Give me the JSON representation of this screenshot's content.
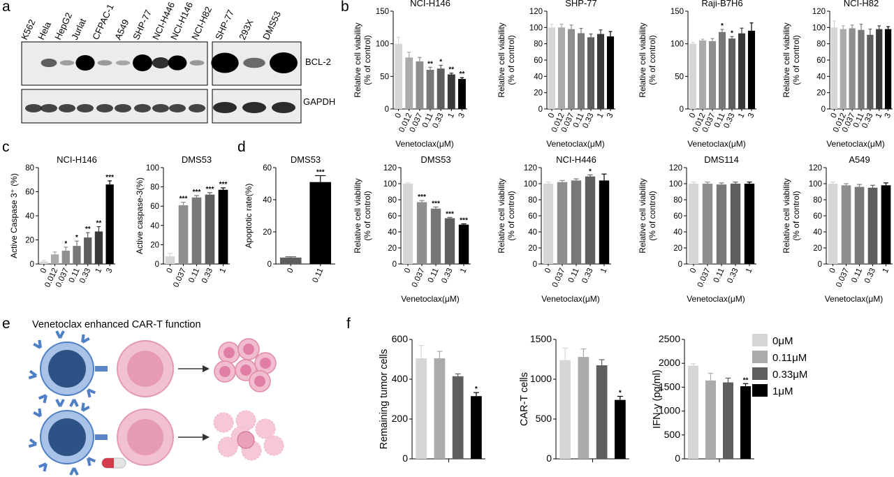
{
  "panel_labels": [
    "a",
    "b",
    "c",
    "d",
    "e",
    "f"
  ],
  "colors": {
    "c0": "#d6d6d6",
    "c1": "#ababab",
    "c2": "#8f8f8f",
    "c3": "#787878",
    "c4": "#5e5e5e",
    "c5": "#3a3a3a",
    "c6": "#000000",
    "cell_blue": "#4f7fc4",
    "cell_blue_dark": "#2c5286",
    "tumor_pink": "#e79ab5",
    "tumor_light": "#f6c8d6"
  },
  "panel_a": {
    "left_lanes": [
      "K562",
      "Hela",
      "HepG2",
      "Jurlat",
      "CFPAC-1",
      "A549",
      "SHP-77",
      "NCI-H446",
      "NCI-H146",
      "NCI-H82"
    ],
    "right_lanes": [
      "SHP-77",
      "293X",
      "DMS53"
    ],
    "proteins": [
      "BCL-2",
      "GAPDH"
    ]
  },
  "panel_e": {
    "title": "Venetoclax enhanced CAR-T function"
  },
  "legend_f": [
    "0μM",
    "0.11μM",
    "0.33μM",
    "1μM"
  ],
  "chart_data": [
    {
      "id": "b1",
      "type": "bar",
      "title": "NCI-H146",
      "xlabel": "Venetoclax(μM)",
      "ylabel": [
        "Relative cell viability",
        "(% of control)"
      ],
      "ylim": [
        0,
        150
      ],
      "yticks": [
        0,
        50,
        100,
        150
      ],
      "categories": [
        "0",
        "0.012",
        "0.037",
        "0.11",
        "0.33",
        "1",
        "3"
      ],
      "values": [
        100,
        79,
        73,
        60,
        62,
        53,
        46
      ],
      "errors": [
        10,
        8,
        6,
        4,
        5,
        2,
        2
      ],
      "sig": [
        "",
        "",
        "",
        "**",
        "*",
        "**",
        "**"
      ]
    },
    {
      "id": "b2",
      "type": "bar",
      "title": "SHP-77",
      "xlabel": "Venetoclax(μM)",
      "ylabel": [
        "Relative cell viability",
        "(% of control)"
      ],
      "ylim": [
        0,
        120
      ],
      "yticks": [
        0,
        20,
        40,
        60,
        80,
        100,
        120
      ],
      "categories": [
        "0",
        "0.012",
        "0.037",
        "0.11",
        "0.33",
        "1",
        "3"
      ],
      "values": [
        100,
        100,
        98,
        93,
        88,
        92,
        89
      ],
      "errors": [
        4,
        4,
        5,
        6,
        4,
        5,
        6
      ],
      "sig": [
        "",
        "",
        "",
        "",
        "",
        "",
        ""
      ]
    },
    {
      "id": "b3",
      "type": "bar",
      "title": "Raji-B7H6",
      "xlabel": "Venetoclax(μM)",
      "ylabel": [
        "Relative cell viability",
        "(% of control)"
      ],
      "ylim": [
        0,
        150
      ],
      "yticks": [
        0,
        50,
        100,
        150
      ],
      "categories": [
        "0",
        "0.012",
        "0.037",
        "0.11",
        "0.33",
        "1",
        "3"
      ],
      "values": [
        100,
        105,
        104,
        118,
        108,
        116,
        120
      ],
      "errors": [
        2,
        2,
        4,
        4,
        3,
        8,
        12
      ],
      "sig": [
        "",
        "",
        "",
        "*",
        "*",
        "",
        ""
      ]
    },
    {
      "id": "b4",
      "type": "bar",
      "title": "NCI-H82",
      "xlabel": "Venetoclax(μM)",
      "ylabel": [
        "Relative cell viability",
        "(% of control)"
      ],
      "ylim": [
        0,
        120
      ],
      "yticks": [
        0,
        20,
        40,
        60,
        80,
        100,
        120
      ],
      "categories": [
        "0",
        "0.012",
        "0.037",
        "0.11",
        "0.33",
        "1",
        "3"
      ],
      "values": [
        100,
        98,
        99,
        97,
        91,
        98,
        98
      ],
      "errors": [
        8,
        4,
        4,
        7,
        7,
        4,
        3
      ],
      "sig": [
        "",
        "",
        "",
        "",
        "",
        "",
        ""
      ]
    },
    {
      "id": "b5",
      "type": "bar",
      "title": "DMS53",
      "xlabel": "Venetoclax(μM)",
      "ylabel": [
        "Relative cell viability",
        "(% of control)"
      ],
      "ylim": [
        0,
        120
      ],
      "yticks": [
        0,
        20,
        40,
        60,
        80,
        100,
        120
      ],
      "categories": [
        "0",
        "0.037",
        "0.11",
        "0.33",
        "1"
      ],
      "values": [
        100,
        77,
        69,
        57,
        49
      ],
      "errors": [
        1,
        2,
        2,
        1,
        1
      ],
      "sig": [
        "",
        "***",
        "***",
        "***",
        "***"
      ]
    },
    {
      "id": "b6",
      "type": "bar",
      "title": "NCI-H446",
      "xlabel": "Venetoclax(μM)",
      "ylabel": [
        "Relative cell viability",
        "(% of control)"
      ],
      "ylim": [
        0,
        120
      ],
      "yticks": [
        0,
        20,
        40,
        60,
        80,
        100,
        120
      ],
      "categories": [
        "0",
        "0.037",
        "0.11",
        "0.33",
        "1"
      ],
      "values": [
        100,
        102,
        104,
        109,
        104
      ],
      "errors": [
        2,
        2,
        2,
        2,
        8
      ],
      "sig": [
        "",
        "",
        "",
        "*",
        ""
      ]
    },
    {
      "id": "b7",
      "type": "bar",
      "title": "DMS114",
      "xlabel": "Venetoclax(μM)",
      "ylabel": [
        "Relative cell viability",
        "(% of control)"
      ],
      "ylim": [
        0,
        120
      ],
      "yticks": [
        0,
        20,
        40,
        60,
        80,
        100,
        120
      ],
      "categories": [
        "0",
        "0.037",
        "0.11",
        "0.33",
        "1"
      ],
      "values": [
        100,
        100,
        99,
        100,
        100
      ],
      "errors": [
        2,
        2,
        2,
        2,
        2
      ],
      "sig": [
        "",
        "",
        "",
        "",
        ""
      ]
    },
    {
      "id": "b8",
      "type": "bar",
      "title": "A549",
      "xlabel": "Venetoclax(μM)",
      "ylabel": [
        "Relative cell viability",
        "(% of control)"
      ],
      "ylim": [
        0,
        120
      ],
      "yticks": [
        0,
        20,
        40,
        60,
        80,
        100,
        120
      ],
      "categories": [
        "0",
        "0.037",
        "0.11",
        "0.33",
        "1"
      ],
      "values": [
        100,
        98,
        96,
        95,
        98
      ],
      "errors": [
        2,
        2,
        3,
        3,
        3
      ],
      "sig": [
        "",
        "",
        "",
        "",
        ""
      ]
    },
    {
      "id": "c1",
      "type": "bar",
      "title": "NCI-H146",
      "xlabel": "",
      "ylabel": [
        "Active Caspase 3⁺ (%)"
      ],
      "ylim": [
        0,
        80
      ],
      "yticks": [
        0,
        20,
        40,
        60,
        80
      ],
      "categories": [
        "0",
        "0.012",
        "0.037",
        "0.11",
        "0.33",
        "1",
        "3"
      ],
      "values": [
        2,
        8,
        11,
        15,
        22,
        27,
        66
      ],
      "errors": [
        1,
        2,
        3,
        4,
        4,
        4,
        3
      ],
      "sig": [
        "",
        "",
        "*",
        "*",
        "**",
        "**",
        "***"
      ]
    },
    {
      "id": "c2",
      "type": "bar",
      "title": "DMS53",
      "xlabel": "",
      "ylabel": [
        "Active caspase-3(%)"
      ],
      "ylim": [
        0,
        100
      ],
      "yticks": [
        0,
        20,
        40,
        60,
        80,
        100
      ],
      "categories": [
        "0",
        "0.037",
        "0.11",
        "0.33",
        "1"
      ],
      "values": [
        8,
        61,
        69,
        72,
        77
      ],
      "errors": [
        3,
        3,
        2,
        2,
        2
      ],
      "sig": [
        "",
        "***",
        "***",
        "***",
        "***"
      ]
    },
    {
      "id": "d",
      "type": "bar",
      "title": "DMS53",
      "xlabel": "",
      "ylabel": [
        "Apoptotic rate(%)"
      ],
      "ylim": [
        0,
        60
      ],
      "yticks": [
        0,
        20,
        40,
        60
      ],
      "categories": [
        "0",
        "0.11"
      ],
      "values": [
        4,
        51
      ],
      "errors": [
        0.5,
        4
      ],
      "sig": [
        "",
        "***"
      ]
    },
    {
      "id": "f1",
      "type": "bar",
      "title": "",
      "xlabel": "",
      "ylabel": [
        "Remaining tumor cells"
      ],
      "ylim": [
        0,
        600
      ],
      "yticks": [
        0,
        200,
        400,
        600
      ],
      "categories": [
        "0μM",
        "0.11μM",
        "0.33μM",
        "1μM"
      ],
      "values": [
        505,
        505,
        415,
        315
      ],
      "errors": [
        65,
        35,
        12,
        18
      ],
      "sig": [
        "",
        "",
        "",
        "*"
      ]
    },
    {
      "id": "f2",
      "type": "bar",
      "title": "",
      "xlabel": "",
      "ylabel": [
        "CAR-T cells"
      ],
      "ylim": [
        0,
        1500
      ],
      "yticks": [
        0,
        500,
        1000,
        1500
      ],
      "categories": [
        "0μM",
        "0.11μM",
        "0.33μM",
        "1μM"
      ],
      "values": [
        1240,
        1280,
        1175,
        740
      ],
      "errors": [
        150,
        100,
        70,
        45
      ],
      "sig": [
        "",
        "",
        "",
        "*"
      ]
    },
    {
      "id": "f3",
      "type": "bar",
      "title": "",
      "xlabel": "",
      "ylabel": [
        "IFN-γ (pg/ml)"
      ],
      "ylim": [
        0,
        2500
      ],
      "yticks": [
        0,
        500,
        1000,
        1500,
        2000,
        2500
      ],
      "categories": [
        "0μM",
        "0.11μM",
        "0.33μM",
        "1μM"
      ],
      "values": [
        1950,
        1640,
        1600,
        1520
      ],
      "errors": [
        40,
        150,
        90,
        55
      ],
      "sig": [
        "",
        "",
        "",
        "**"
      ]
    }
  ]
}
